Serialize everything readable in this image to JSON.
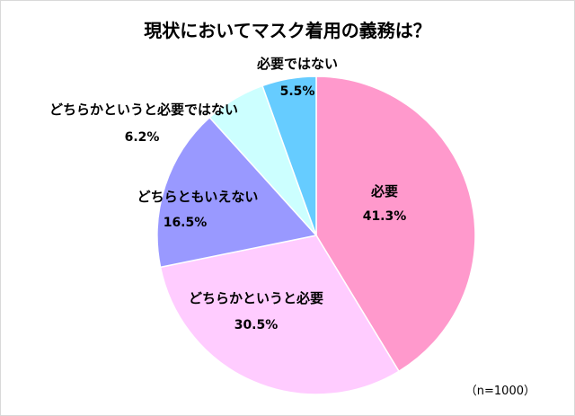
{
  "chart_data": {
    "type": "pie",
    "title": "現状においてマスク着用の義務は？",
    "slices": [
      {
        "label": "必要",
        "value": 41.3,
        "display": "41.3%",
        "color": "#ff99cc"
      },
      {
        "label": "どちらかというと必要",
        "value": 30.5,
        "display": "30.5%",
        "color": "#ffccff"
      },
      {
        "label": "どちらともいえない",
        "value": 16.5,
        "display": "16.5%",
        "color": "#9999ff"
      },
      {
        "label": "どちらかというと必要ではない",
        "value": 6.2,
        "display": "6.2%",
        "color": "#ccffff"
      },
      {
        "label": "必要ではない",
        "value": 5.5,
        "display": "5.5%",
        "color": "#66ccff"
      }
    ],
    "note": "（n=1000）"
  }
}
